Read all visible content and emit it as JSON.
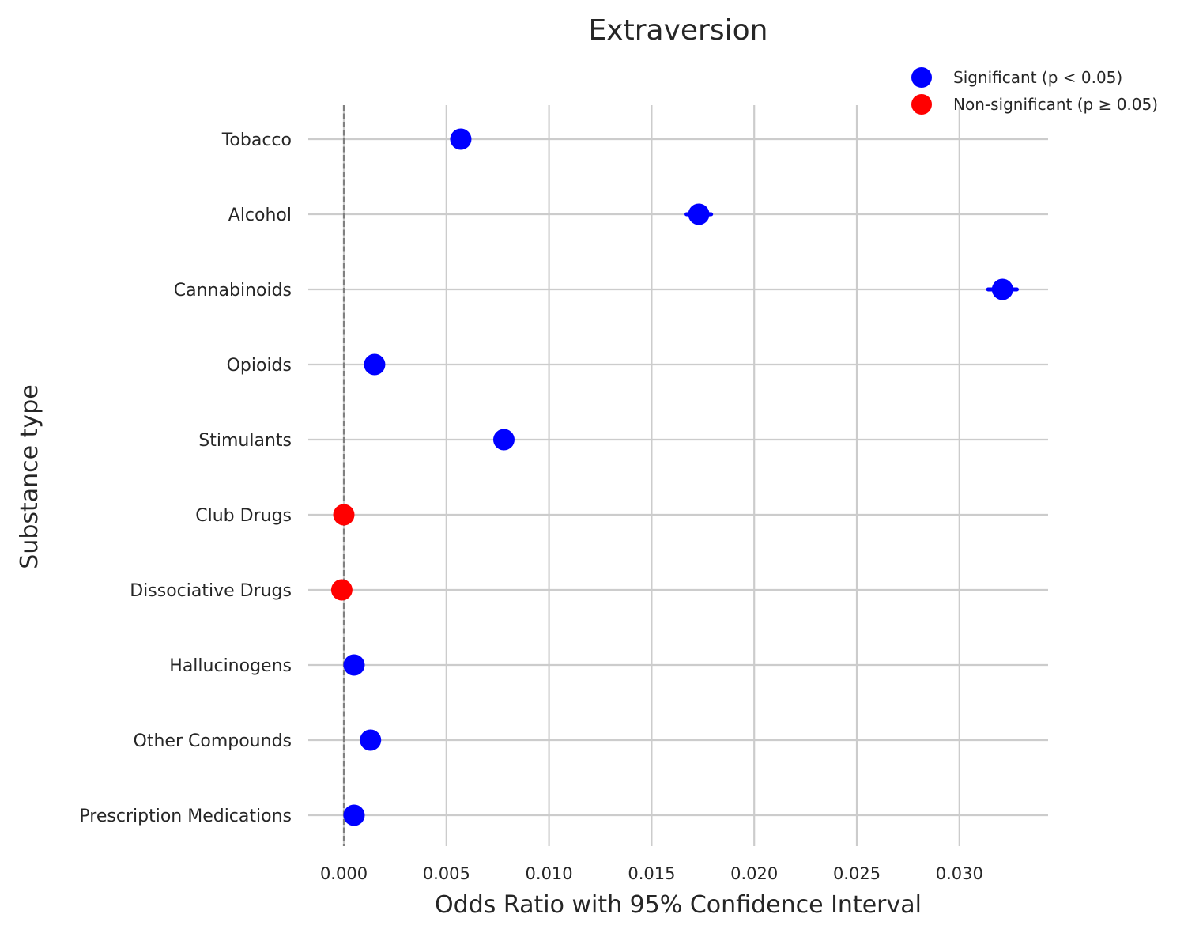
{
  "chart_data": {
    "type": "scatter",
    "title": "Extraversion",
    "xlabel": "Odds Ratio with 95% Confidence Interval",
    "ylabel": "Substance type",
    "xlim": [
      -0.0018,
      0.0345
    ],
    "xticks": [
      0.0,
      0.005,
      0.01,
      0.015,
      0.02,
      0.025,
      0.03
    ],
    "xtick_labels": [
      "0.000",
      "0.005",
      "0.010",
      "0.015",
      "0.020",
      "0.025",
      "0.030"
    ],
    "reference_line": 0.0,
    "grid": true,
    "legend_position": "top-right",
    "legend": [
      {
        "label": "Significant (p < 0.05)",
        "color": "#0000ff"
      },
      {
        "label": "Non-significant (p ≥ 0.05)",
        "color": "#ff0000"
      }
    ],
    "categories": [
      "Tobacco",
      "Alcohol",
      "Cannabinoids",
      "Opioids",
      "Stimulants",
      "Club Drugs",
      "Dissociative Drugs",
      "Hallucinogens",
      "Other Compounds",
      "Prescription Medications"
    ],
    "points": [
      {
        "category": "Tobacco",
        "value": 0.0057,
        "ci": [
          0.0054,
          0.006
        ],
        "significant": true
      },
      {
        "category": "Alcohol",
        "value": 0.0173,
        "ci": [
          0.0167,
          0.0179
        ],
        "significant": true
      },
      {
        "category": "Cannabinoids",
        "value": 0.0321,
        "ci": [
          0.0314,
          0.0328
        ],
        "significant": true
      },
      {
        "category": "Opioids",
        "value": 0.0015,
        "ci": [
          0.0013,
          0.0017
        ],
        "significant": true
      },
      {
        "category": "Stimulants",
        "value": 0.0078,
        "ci": [
          0.0075,
          0.0081
        ],
        "significant": true
      },
      {
        "category": "Club Drugs",
        "value": 0.0,
        "ci": [
          -0.0002,
          0.0002
        ],
        "significant": false
      },
      {
        "category": "Dissociative Drugs",
        "value": -0.0001,
        "ci": [
          -0.0003,
          0.0001
        ],
        "significant": false
      },
      {
        "category": "Hallucinogens",
        "value": 0.0005,
        "ci": [
          0.0003,
          0.0007
        ],
        "significant": true
      },
      {
        "category": "Other Compounds",
        "value": 0.0013,
        "ci": [
          0.0011,
          0.0015
        ],
        "significant": true
      },
      {
        "category": "Prescription Medications",
        "value": 0.0005,
        "ci": [
          0.0003,
          0.0007
        ],
        "significant": true
      }
    ]
  }
}
